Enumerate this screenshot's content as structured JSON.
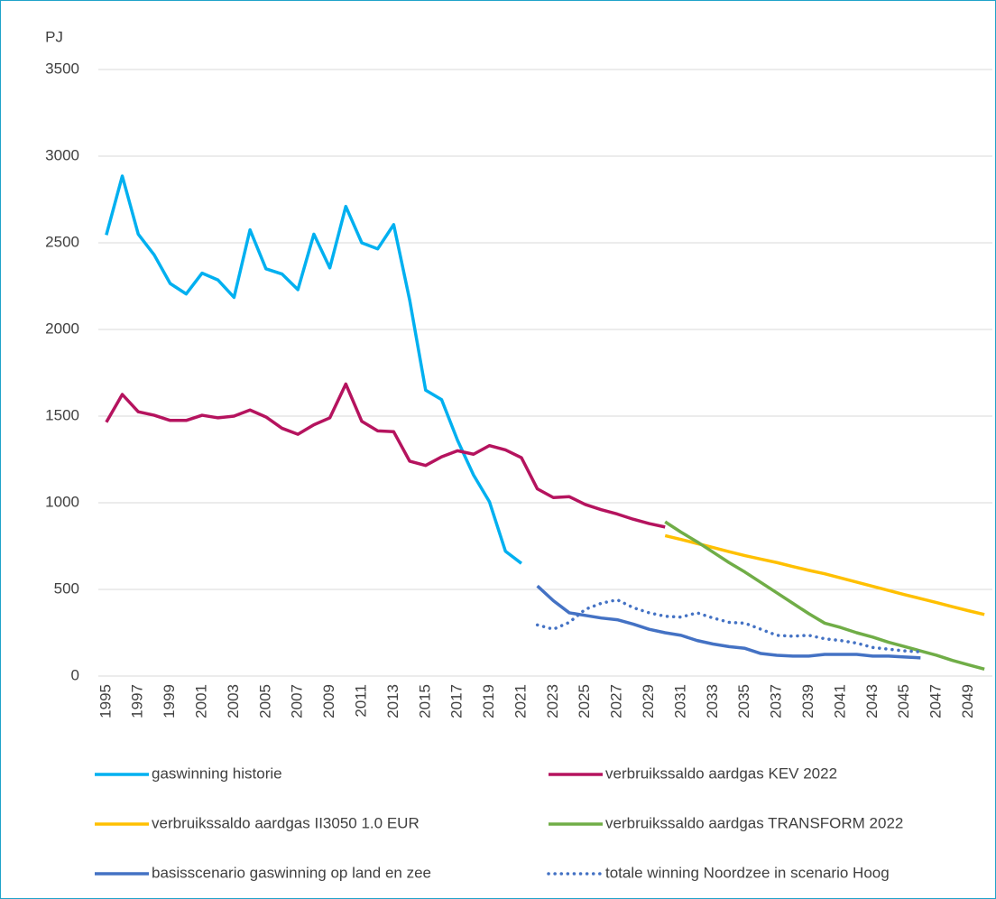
{
  "chart_data": {
    "type": "line",
    "y_axis_label": "PJ",
    "x": [
      1995,
      1996,
      1997,
      1998,
      1999,
      2000,
      2001,
      2002,
      2003,
      2004,
      2005,
      2006,
      2007,
      2008,
      2009,
      2010,
      2011,
      2012,
      2013,
      2014,
      2015,
      2016,
      2017,
      2018,
      2019,
      2020,
      2021,
      2022,
      2023,
      2024,
      2025,
      2026,
      2027,
      2028,
      2029,
      2030,
      2031,
      2032,
      2033,
      2034,
      2035,
      2036,
      2037,
      2038,
      2039,
      2040,
      2041,
      2042,
      2043,
      2044,
      2045,
      2046,
      2047,
      2048,
      2049,
      2050
    ],
    "xlim": [
      1994.5,
      2050.5
    ],
    "xticks": [
      1995,
      1997,
      1999,
      2001,
      2003,
      2005,
      2007,
      2009,
      2011,
      2013,
      2015,
      2017,
      2019,
      2021,
      2023,
      2025,
      2027,
      2029,
      2031,
      2033,
      2035,
      2037,
      2039,
      2041,
      2043,
      2045,
      2047,
      2049
    ],
    "ylim": [
      0,
      3500
    ],
    "yticks": [
      0,
      500,
      1000,
      1500,
      2000,
      2500,
      3000,
      3500
    ],
    "grid": true,
    "legend": "bottom",
    "series": [
      {
        "name": "gaswinning historie",
        "color": "#00b0f0",
        "values": [
          2545,
          2885,
          2550,
          2430,
          2265,
          2205,
          2325,
          2285,
          2185,
          2575,
          2350,
          2320,
          2230,
          2550,
          2355,
          2710,
          2500,
          2465,
          2605,
          2170,
          1650,
          1595,
          1360,
          1160,
          1005,
          720,
          650,
          null,
          null,
          null,
          null,
          null,
          null,
          null,
          null,
          null,
          null,
          null,
          null,
          null,
          null,
          null,
          null,
          null,
          null,
          null,
          null,
          null,
          null,
          null,
          null,
          null,
          null,
          null,
          null,
          null
        ]
      },
      {
        "name": "verbruikssaldo aardgas KEV 2022",
        "color": "#b5135e",
        "values": [
          1465,
          1625,
          1525,
          1505,
          1475,
          1475,
          1505,
          1490,
          1500,
          1535,
          1495,
          1430,
          1395,
          1450,
          1490,
          1685,
          1470,
          1415,
          1410,
          1240,
          1215,
          1265,
          1300,
          1280,
          1330,
          1305,
          1260,
          1080,
          1030,
          1035,
          990,
          960,
          935,
          905,
          880,
          860,
          null,
          null,
          null,
          null,
          null,
          null,
          null,
          null,
          null,
          null,
          null,
          null,
          null,
          null,
          null,
          null,
          null,
          null,
          null,
          null
        ]
      },
      {
        "name": "verbruikssaldo aardgas II3050 1.0 EUR",
        "color": "#ffc000",
        "values": [
          null,
          null,
          null,
          null,
          null,
          null,
          null,
          null,
          null,
          null,
          null,
          null,
          null,
          null,
          null,
          null,
          null,
          null,
          null,
          null,
          null,
          null,
          null,
          null,
          null,
          null,
          null,
          null,
          null,
          null,
          null,
          null,
          null,
          null,
          null,
          810,
          788,
          765,
          742,
          718,
          695,
          675,
          655,
          632,
          610,
          590,
          566,
          542,
          518,
          494,
          470,
          447,
          424,
          400,
          377,
          355
        ]
      },
      {
        "name": "verbruikssaldo aardgas TRANSFORM 2022",
        "color": "#70ad47",
        "values": [
          null,
          null,
          null,
          null,
          null,
          null,
          null,
          null,
          null,
          null,
          null,
          null,
          null,
          null,
          null,
          null,
          null,
          null,
          null,
          null,
          null,
          null,
          null,
          null,
          null,
          null,
          null,
          null,
          null,
          null,
          null,
          null,
          null,
          null,
          null,
          890,
          830,
          775,
          715,
          655,
          600,
          540,
          480,
          420,
          360,
          305,
          280,
          250,
          225,
          195,
          170,
          145,
          120,
          90,
          65,
          40
        ]
      },
      {
        "name": "basisscenario gaswinning op land en zee",
        "color": "#4472c4",
        "values": [
          null,
          null,
          null,
          null,
          null,
          null,
          null,
          null,
          null,
          null,
          null,
          null,
          null,
          null,
          null,
          null,
          null,
          null,
          null,
          null,
          null,
          null,
          null,
          null,
          null,
          null,
          null,
          520,
          435,
          365,
          350,
          335,
          325,
          300,
          270,
          250,
          235,
          205,
          185,
          170,
          160,
          130,
          120,
          115,
          115,
          125,
          125,
          125,
          115,
          115,
          110,
          105,
          null,
          null,
          null,
          null
        ]
      },
      {
        "name": "totale winning Noordzee in scenario Hoog",
        "color": "#4472c4",
        "style": "dotted",
        "values": [
          null,
          null,
          null,
          null,
          null,
          null,
          null,
          null,
          null,
          null,
          null,
          null,
          null,
          null,
          null,
          null,
          null,
          null,
          null,
          null,
          null,
          null,
          null,
          null,
          null,
          null,
          null,
          295,
          270,
          310,
          385,
          420,
          440,
          395,
          365,
          345,
          340,
          365,
          335,
          310,
          305,
          270,
          235,
          230,
          235,
          215,
          205,
          190,
          165,
          155,
          145,
          140,
          null,
          null,
          null,
          null
        ]
      }
    ]
  }
}
